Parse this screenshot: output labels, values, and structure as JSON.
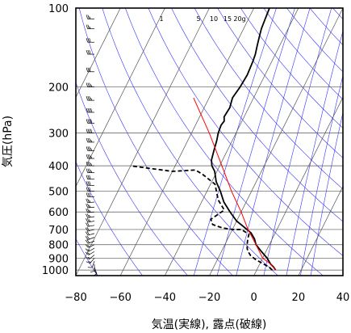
{
  "chart_data": {
    "type": "line",
    "title": "",
    "xlabel": "気温(実線), 露点(破線)",
    "ylabel": "気圧(hPa)",
    "xlim": [
      -80,
      40
    ],
    "ylim": [
      1050,
      100
    ],
    "y_scale": "log",
    "grid": true,
    "x_ticks": [
      -80,
      -60,
      -40,
      -20,
      0,
      20,
      40
    ],
    "x_tick_labels": [
      "−80",
      "−60",
      "−40",
      "−20",
      "0",
      "20",
      "40"
    ],
    "y_ticks": [
      100,
      200,
      300,
      400,
      500,
      600,
      700,
      800,
      900,
      1000
    ],
    "y_tick_labels": [
      "100",
      "200",
      "300",
      "400",
      "500",
      "600",
      "700",
      "800",
      "900",
      "1000"
    ],
    "mixing_ratio_labels": [
      "1",
      "5",
      "10",
      "15",
      "20g"
    ],
    "series": [
      {
        "style": "solid",
        "color": "#000000",
        "x": [
          8.5,
          7,
          5,
          2,
          -2,
          -6,
          -8,
          -11,
          -16,
          -20,
          -25,
          -30,
          -34,
          -38,
          -41,
          -43.5,
          -45,
          -46,
          -47,
          -48,
          -48.5,
          -48,
          -49,
          -48.5,
          -49.5,
          -48.5,
          -48,
          -48.5,
          -49,
          -50,
          -51,
          -52,
          -52.5,
          -53
        ],
        "y": [
          1000,
          975,
          950,
          900,
          850,
          800,
          760,
          720,
          680,
          650,
          600,
          550,
          500,
          460,
          420,
          400,
          380,
          350,
          320,
          300,
          280,
          270,
          260,
          240,
          220,
          200,
          180,
          160,
          150,
          140,
          130,
          120,
          110,
          100
        ]
      },
      {
        "style": "dashed",
        "color": "#000000",
        "x": [
          7,
          5,
          2,
          -3,
          -6,
          -8,
          -9,
          -10,
          -11,
          -11.5,
          -13,
          -16,
          -20,
          -25,
          -30,
          -32,
          -28,
          -33,
          -38,
          -46,
          -50,
          -60,
          -70,
          -75,
          -80
        ],
        "y": [
          1000,
          975,
          950,
          910,
          880,
          850,
          830,
          800,
          760,
          730,
          720,
          700,
          700,
          690,
          670,
          640,
          590,
          540,
          470,
          430,
          415,
          420,
          410,
          405,
          400
        ]
      },
      {
        "style": "solid",
        "color": "#ff0000",
        "x": [
          8.5,
          5,
          0,
          -6,
          -13,
          -20,
          -29,
          -39,
          -52,
          -67
        ],
        "y": [
          1000,
          950,
          900,
          800,
          700,
          600,
          500,
          400,
          300,
          220
        ]
      }
    ],
    "dry_adiabats_theta": [
      200,
      220,
      240,
      260,
      280,
      300,
      320,
      340,
      360,
      380,
      400,
      420,
      440,
      460,
      480,
      500,
      520,
      540,
      560
    ],
    "mixing_ratio_lines": [
      0.4,
      1,
      2,
      5,
      10,
      15,
      20
    ],
    "wind_barbs": [
      {
        "p": 1000,
        "dir": 150,
        "kt": 5
      },
      {
        "p": 975,
        "dir": 160,
        "kt": 10
      },
      {
        "p": 950,
        "dir": 180,
        "kt": 10
      },
      {
        "p": 925,
        "dir": 200,
        "kt": 10
      },
      {
        "p": 900,
        "dir": 220,
        "kt": 15
      },
      {
        "p": 875,
        "dir": 230,
        "kt": 15
      },
      {
        "p": 850,
        "dir": 240,
        "kt": 15
      },
      {
        "p": 825,
        "dir": 240,
        "kt": 15
      },
      {
        "p": 800,
        "dir": 245,
        "kt": 15
      },
      {
        "p": 775,
        "dir": 250,
        "kt": 20
      },
      {
        "p": 750,
        "dir": 250,
        "kt": 20
      },
      {
        "p": 725,
        "dir": 255,
        "kt": 20
      },
      {
        "p": 700,
        "dir": 255,
        "kt": 20
      },
      {
        "p": 675,
        "dir": 260,
        "kt": 20
      },
      {
        "p": 650,
        "dir": 260,
        "kt": 25
      },
      {
        "p": 625,
        "dir": 260,
        "kt": 25
      },
      {
        "p": 600,
        "dir": 265,
        "kt": 25
      },
      {
        "p": 575,
        "dir": 265,
        "kt": 25
      },
      {
        "p": 550,
        "dir": 265,
        "kt": 25
      },
      {
        "p": 525,
        "dir": 270,
        "kt": 30
      },
      {
        "p": 500,
        "dir": 270,
        "kt": 30
      },
      {
        "p": 475,
        "dir": 270,
        "kt": 30
      },
      {
        "p": 450,
        "dir": 270,
        "kt": 30
      },
      {
        "p": 425,
        "dir": 270,
        "kt": 35
      },
      {
        "p": 400,
        "dir": 270,
        "kt": 35
      },
      {
        "p": 375,
        "dir": 270,
        "kt": 35
      },
      {
        "p": 350,
        "dir": 270,
        "kt": 35
      },
      {
        "p": 325,
        "dir": 270,
        "kt": 35
      },
      {
        "p": 300,
        "dir": 270,
        "kt": 40
      },
      {
        "p": 275,
        "dir": 270,
        "kt": 40
      },
      {
        "p": 250,
        "dir": 270,
        "kt": 40
      },
      {
        "p": 225,
        "dir": 270,
        "kt": 35
      },
      {
        "p": 200,
        "dir": 270,
        "kt": 35
      },
      {
        "p": 175,
        "dir": 270,
        "kt": 30
      },
      {
        "p": 150,
        "dir": 270,
        "kt": 30
      },
      {
        "p": 135,
        "dir": 270,
        "kt": 30
      },
      {
        "p": 120,
        "dir": 270,
        "kt": 25
      },
      {
        "p": 110,
        "dir": 270,
        "kt": 25
      },
      {
        "p": 100,
        "dir": 270,
        "kt": 25
      }
    ],
    "colors": {
      "grid": "#555555",
      "adiabat": "#3333ff",
      "mixing_ratio": "#3333ff",
      "temperature": "#000000",
      "dewpoint": "#000000",
      "parcel": "#ff0000",
      "frame": "#000000"
    }
  }
}
